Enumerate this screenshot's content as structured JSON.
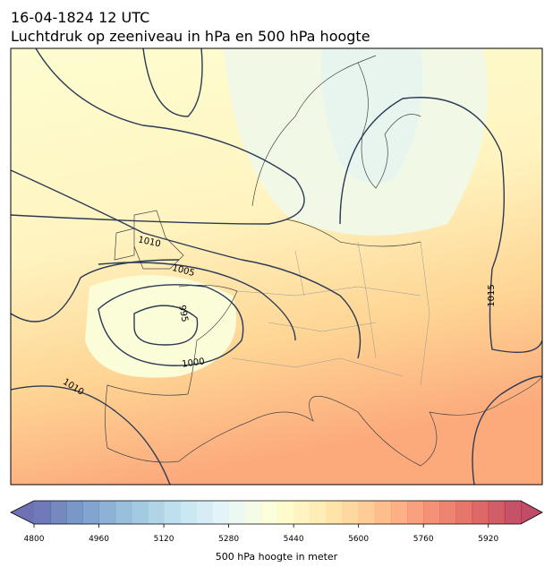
{
  "header": {
    "line1": "16-04-1824 12 UTC",
    "line2": "Luchtdruk op zeeniveau in hPa en 500 hPa hoogte"
  },
  "map": {
    "contour_labels": [
      1010,
      1005,
      995,
      1000,
      1010,
      1015
    ]
  },
  "colorbar": {
    "label": "500 hPa hoogte in meter",
    "range": [
      4800,
      6000
    ],
    "step": 40,
    "ticks": [
      4800,
      4960,
      5120,
      5280,
      5440,
      5600,
      5760,
      5920
    ],
    "colors": [
      "#313695",
      "#4575b4",
      "#74add1",
      "#abd9e9",
      "#e0f3f8",
      "#ffffbf",
      "#fee090",
      "#fdae61",
      "#f46d43",
      "#d73027",
      "#a50026"
    ],
    "opacity": 0.7
  }
}
